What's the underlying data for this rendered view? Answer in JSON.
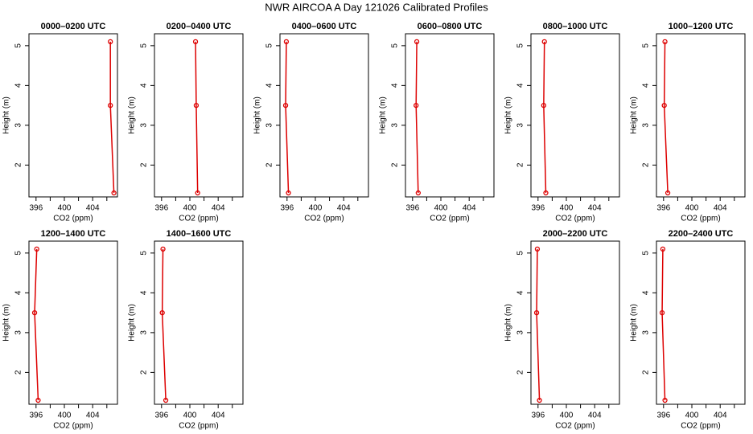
{
  "title": "NWR AIRCOA A  Day 121026  Calibrated Profiles",
  "chart_data": [
    {
      "type": "line",
      "title": "0000–0200 UTC",
      "xlabel": "CO2 (ppm)",
      "ylabel": "Height (m)",
      "color": "#dd0000",
      "x": [
        406.5,
        406.5,
        407.0
      ],
      "values": [
        5.1,
        3.5,
        1.3
      ],
      "xlim": [
        395,
        407.5
      ],
      "ylim": [
        1.2,
        5.3
      ],
      "xticks": [
        396,
        {
          "value": 398,
          "label": null
        },
        400,
        {
          "value": 402,
          "label": null
        },
        404,
        {
          "value": 406,
          "label": null
        }
      ],
      "yticks": [
        2,
        3,
        4,
        5
      ]
    },
    {
      "type": "line",
      "title": "0200–0400 UTC",
      "xlabel": "CO2 (ppm)",
      "ylabel": "Height (m)",
      "color": "#dd0000",
      "x": [
        400.8,
        400.9,
        401.1
      ],
      "values": [
        5.1,
        3.5,
        1.3
      ],
      "xlim": [
        395,
        407.5
      ],
      "ylim": [
        1.2,
        5.3
      ],
      "xticks": [
        396,
        {
          "value": 398,
          "label": null
        },
        400,
        {
          "value": 402,
          "label": null
        },
        404,
        {
          "value": 406,
          "label": null
        }
      ],
      "yticks": [
        2,
        3,
        4,
        5
      ]
    },
    {
      "type": "line",
      "title": "0400–0600 UTC",
      "xlabel": "CO2 (ppm)",
      "ylabel": "Height (m)",
      "color": "#dd0000",
      "x": [
        395.9,
        395.8,
        396.2
      ],
      "values": [
        5.1,
        3.5,
        1.3
      ],
      "xlim": [
        395,
        407.5
      ],
      "ylim": [
        1.2,
        5.3
      ],
      "xticks": [
        396,
        {
          "value": 398,
          "label": null
        },
        400,
        {
          "value": 402,
          "label": null
        },
        404,
        {
          "value": 406,
          "label": null
        }
      ],
      "yticks": [
        2,
        3,
        4,
        5
      ]
    },
    {
      "type": "line",
      "title": "0600–0800 UTC",
      "xlabel": "CO2 (ppm)",
      "ylabel": "Height (m)",
      "color": "#dd0000",
      "x": [
        396.6,
        396.5,
        396.8
      ],
      "values": [
        5.1,
        3.5,
        1.3
      ],
      "xlim": [
        395,
        407.5
      ],
      "ylim": [
        1.2,
        5.3
      ],
      "xticks": [
        396,
        {
          "value": 398,
          "label": null
        },
        400,
        {
          "value": 402,
          "label": null
        },
        404,
        {
          "value": 406,
          "label": null
        }
      ],
      "yticks": [
        2,
        3,
        4,
        5
      ]
    },
    {
      "type": "line",
      "title": "0800–1000 UTC",
      "xlabel": "CO2 (ppm)",
      "ylabel": "Height (m)",
      "color": "#dd0000",
      "x": [
        396.9,
        396.8,
        397.1
      ],
      "values": [
        5.1,
        3.5,
        1.3
      ],
      "xlim": [
        395,
        407.5
      ],
      "ylim": [
        1.2,
        5.3
      ],
      "xticks": [
        396,
        {
          "value": 398,
          "label": null
        },
        400,
        {
          "value": 402,
          "label": null
        },
        404,
        {
          "value": 406,
          "label": null
        }
      ],
      "yticks": [
        2,
        3,
        4,
        5
      ]
    },
    {
      "type": "line",
      "title": "1000–1200 UTC",
      "xlabel": "CO2 (ppm)",
      "ylabel": "Height (m)",
      "color": "#dd0000",
      "x": [
        396.2,
        396.1,
        396.6
      ],
      "values": [
        5.1,
        3.5,
        1.3
      ],
      "xlim": [
        395,
        407.5
      ],
      "ylim": [
        1.2,
        5.3
      ],
      "xticks": [
        396,
        {
          "value": 398,
          "label": null
        },
        400,
        {
          "value": 402,
          "label": null
        },
        404,
        {
          "value": 406,
          "label": null
        }
      ],
      "yticks": [
        2,
        3,
        4,
        5
      ]
    },
    {
      "type": "line",
      "title": "1200–1400 UTC",
      "xlabel": "CO2 (ppm)",
      "ylabel": "Height (m)",
      "color": "#dd0000",
      "x": [
        396.1,
        395.8,
        396.3
      ],
      "values": [
        5.1,
        3.5,
        1.3
      ],
      "xlim": [
        395,
        407.5
      ],
      "ylim": [
        1.2,
        5.3
      ],
      "xticks": [
        396,
        {
          "value": 398,
          "label": null
        },
        400,
        {
          "value": 402,
          "label": null
        },
        404,
        {
          "value": 406,
          "label": null
        }
      ],
      "yticks": [
        2,
        3,
        4,
        5
      ]
    },
    {
      "type": "line",
      "title": "1400–1600 UTC",
      "xlabel": "CO2 (ppm)",
      "ylabel": "Height (m)",
      "color": "#dd0000",
      "x": [
        396.2,
        396.1,
        396.6
      ],
      "values": [
        5.1,
        3.5,
        1.3
      ],
      "xlim": [
        395,
        407.5
      ],
      "ylim": [
        1.2,
        5.3
      ],
      "xticks": [
        396,
        {
          "value": 398,
          "label": null
        },
        400,
        {
          "value": 402,
          "label": null
        },
        404,
        {
          "value": 406,
          "label": null
        }
      ],
      "yticks": [
        2,
        3,
        4,
        5
      ]
    },
    {
      "type": "line",
      "title": "2000–2200 UTC",
      "xlabel": "CO2 (ppm)",
      "ylabel": "Height (m)",
      "color": "#dd0000",
      "x": [
        395.9,
        395.8,
        396.2
      ],
      "values": [
        5.1,
        3.5,
        1.3
      ],
      "xlim": [
        395,
        407.5
      ],
      "ylim": [
        1.2,
        5.3
      ],
      "xticks": [
        396,
        {
          "value": 398,
          "label": null
        },
        400,
        {
          "value": 402,
          "label": null
        },
        404,
        {
          "value": 406,
          "label": null
        }
      ],
      "yticks": [
        2,
        3,
        4,
        5
      ]
    },
    {
      "type": "line",
      "title": "2200–2400 UTC",
      "xlabel": "CO2 (ppm)",
      "ylabel": "Height (m)",
      "color": "#dd0000",
      "x": [
        395.9,
        395.8,
        396.2
      ],
      "values": [
        5.1,
        3.5,
        1.3
      ],
      "xlim": [
        395,
        407.5
      ],
      "ylim": [
        1.2,
        5.3
      ],
      "xticks": [
        396,
        {
          "value": 398,
          "label": null
        },
        400,
        {
          "value": 402,
          "label": null
        },
        404,
        {
          "value": 406,
          "label": null
        }
      ],
      "yticks": [
        2,
        3,
        4,
        5
      ]
    }
  ]
}
